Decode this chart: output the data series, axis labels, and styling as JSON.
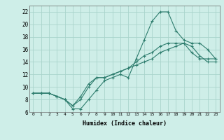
{
  "xlabel": "Humidex (Indice chaleur)",
  "x_values": [
    0,
    1,
    2,
    3,
    4,
    5,
    6,
    7,
    8,
    9,
    10,
    11,
    12,
    13,
    14,
    15,
    16,
    17,
    18,
    19,
    20,
    21,
    22,
    23
  ],
  "line1": [
    9,
    9,
    9,
    8.5,
    8,
    6.5,
    6.5,
    8,
    9.5,
    11,
    11.5,
    12,
    11.5,
    14.5,
    17.5,
    20.5,
    22,
    22,
    19,
    17.5,
    17,
    17,
    16,
    14.5
  ],
  "line2": [
    9,
    9,
    9,
    8.5,
    8,
    7,
    8,
    10,
    11.5,
    11.5,
    12,
    12.5,
    13,
    13.5,
    14,
    14.5,
    15.5,
    16,
    16.5,
    17,
    16.5,
    15,
    14,
    14
  ],
  "line3": [
    9,
    9,
    9,
    8.5,
    8,
    7,
    8.5,
    10.5,
    11.5,
    11.5,
    12,
    12.5,
    13,
    14,
    15,
    15.5,
    16.5,
    17,
    17,
    17,
    15.5,
    14.5,
    14.5,
    14.5
  ],
  "line_color": "#2e7d6e",
  "bg_color": "#ceeee8",
  "grid_color": "#aad4cc",
  "ylim": [
    6,
    23
  ],
  "xlim": [
    -0.5,
    23.5
  ],
  "yticks": [
    6,
    8,
    10,
    12,
    14,
    16,
    18,
    20,
    22
  ],
  "xticks": [
    0,
    1,
    2,
    3,
    4,
    5,
    6,
    7,
    8,
    9,
    10,
    11,
    12,
    13,
    14,
    15,
    16,
    17,
    18,
    19,
    20,
    21,
    22,
    23
  ]
}
